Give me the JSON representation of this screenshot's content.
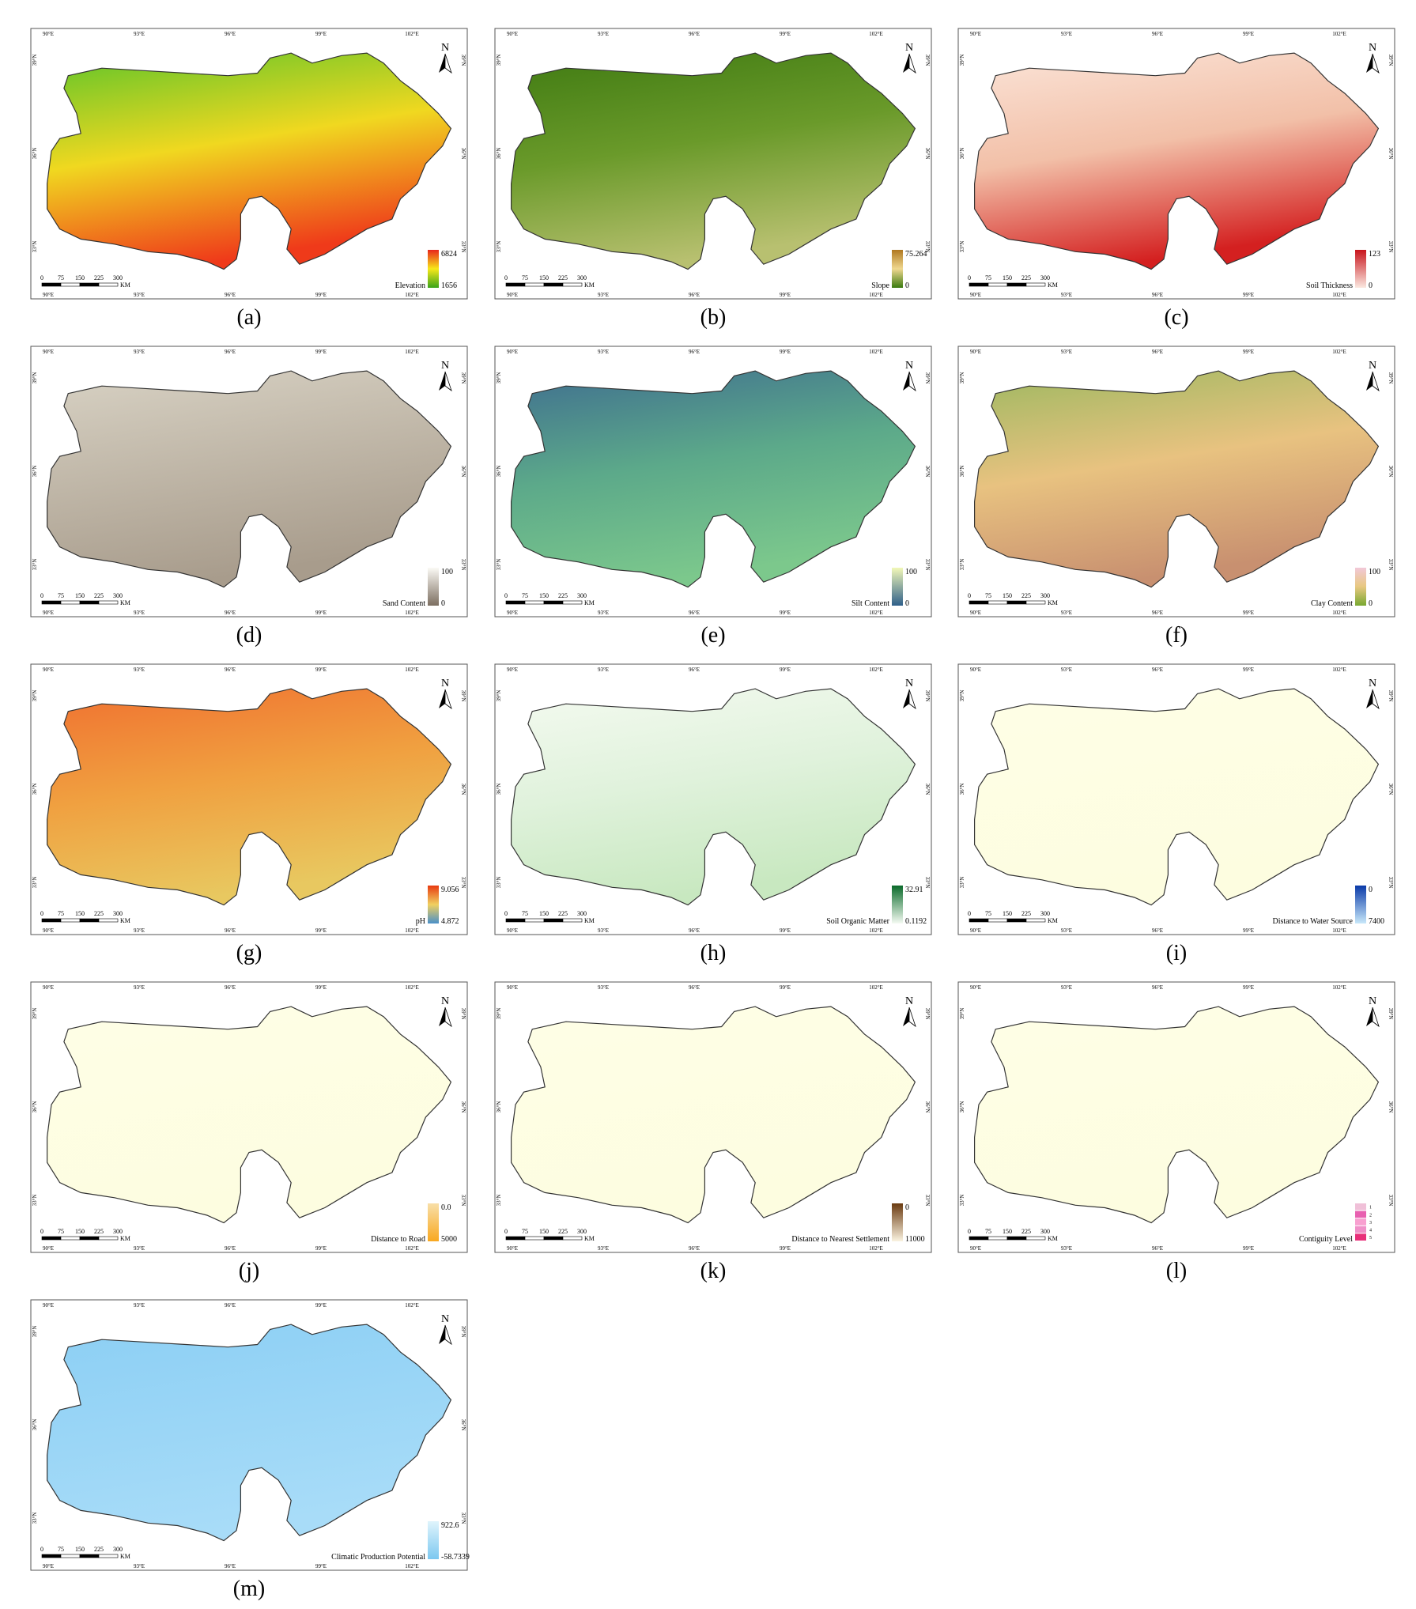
{
  "common": {
    "north": "N",
    "lon_ticks": [
      "90°E",
      "93°E",
      "96°E",
      "99°E",
      "102°E"
    ],
    "lat_ticks": [
      "39°N",
      "36°N",
      "33°N"
    ],
    "scale_labels": [
      "0",
      "75",
      "150",
      "225",
      "300"
    ],
    "scale_unit": "KM"
  },
  "panels": [
    {
      "label": "(a)",
      "legend_title": "Elevation",
      "legend_max": "6824",
      "legend_min": "1656",
      "legend_colors": [
        "#e8251c",
        "#f7e81a",
        "#3aa41a"
      ],
      "map_colors": [
        "#5cc42a",
        "#f0d820",
        "#ef3a1a"
      ]
    },
    {
      "label": "(b)",
      "legend_title": "Slope",
      "legend_max": "75.264",
      "legend_min": "0",
      "legend_colors": [
        "#b07820",
        "#f0d890",
        "#3a7a10"
      ],
      "map_colors": [
        "#3f7a12",
        "#6a9a2a",
        "#b8c070"
      ]
    },
    {
      "label": "(c)",
      "legend_title": "Soil Thickness",
      "legend_max": "123",
      "legend_min": "0",
      "legend_colors": [
        "#c8141c",
        "#fbe8e0"
      ],
      "map_colors": [
        "#fbe4d8",
        "#f2c0a8",
        "#d42020"
      ]
    },
    {
      "label": "(d)",
      "legend_title": "Sand Content",
      "legend_max": "100",
      "legend_min": "0",
      "legend_colors": [
        "#fbfaf5",
        "#7c6e60"
      ],
      "map_colors": [
        "#d8d2c4",
        "#a89c8c"
      ]
    },
    {
      "label": "(e)",
      "legend_title": "Silt Content",
      "legend_max": "100",
      "legend_min": "0",
      "legend_colors": [
        "#f2f8b8",
        "#2f5f8a"
      ],
      "map_colors": [
        "#3f6e8f",
        "#5ca98a",
        "#7cc88c"
      ]
    },
    {
      "label": "(f)",
      "legend_title": "Clay Content",
      "legend_max": "100",
      "legend_min": "0",
      "legend_colors": [
        "#f2c8d8",
        "#e8c880",
        "#78a830"
      ],
      "map_colors": [
        "#9cb860",
        "#e8c280",
        "#c89070"
      ]
    },
    {
      "label": "(g)",
      "legend_title": "pH",
      "legend_max": "9.056",
      "legend_min": "4.872",
      "legend_colors": [
        "#e83a10",
        "#f0d060",
        "#4a90c8"
      ],
      "map_colors": [
        "#f07030",
        "#f0a040",
        "#e8c860"
      ]
    },
    {
      "label": "(h)",
      "legend_title": "Soil Organic Matter",
      "legend_max": "32.91",
      "legend_min": "0.1192",
      "legend_colors": [
        "#0a6a2a",
        "#f4fbf2"
      ],
      "map_colors": [
        "#f4faf0",
        "#e0f2dc",
        "#c8e8c0"
      ]
    },
    {
      "label": "(i)",
      "legend_title": "Distance to Water Source",
      "legend_max": "0",
      "legend_min": "7400",
      "legend_colors": [
        "#0a3aa8",
        "#c8e8fa"
      ],
      "map_colors": [
        "#fefee6",
        "#fdfde0"
      ]
    },
    {
      "label": "(j)",
      "legend_title": "Distance to Road",
      "legend_max": "0.0",
      "legend_min": "5000",
      "legend_colors": [
        "#f8dfa8",
        "#f8a820"
      ],
      "map_colors": [
        "#fefee6",
        "#fdfde0"
      ]
    },
    {
      "label": "(k)",
      "legend_title": "Distance to Nearest Settlement",
      "legend_max": "0",
      "legend_min": "11000",
      "legend_colors": [
        "#6a3a10",
        "#fbf3e0"
      ],
      "map_colors": [
        "#fefee6",
        "#fdfde0"
      ]
    },
    {
      "label": "(l)",
      "legend_title": "Contiguity Level",
      "legend_classes": [
        {
          "label": "1",
          "color": "#f0c0d8"
        },
        {
          "label": "2",
          "color": "#e860b0"
        },
        {
          "label": "3",
          "color": "#f8a0d0"
        },
        {
          "label": "4",
          "color": "#f090c8"
        },
        {
          "label": "5",
          "color": "#e8307a"
        }
      ],
      "map_colors": [
        "#fefee6",
        "#fdfde0"
      ]
    },
    {
      "label": "(m)",
      "legend_title": "Climatic Production Potential",
      "legend_max": "922.6",
      "legend_min": "-58.7339",
      "legend_colors": [
        "#dff4fc",
        "#7cc8f0"
      ],
      "map_colors": [
        "#8ccff4",
        "#a8dcf8"
      ]
    }
  ]
}
